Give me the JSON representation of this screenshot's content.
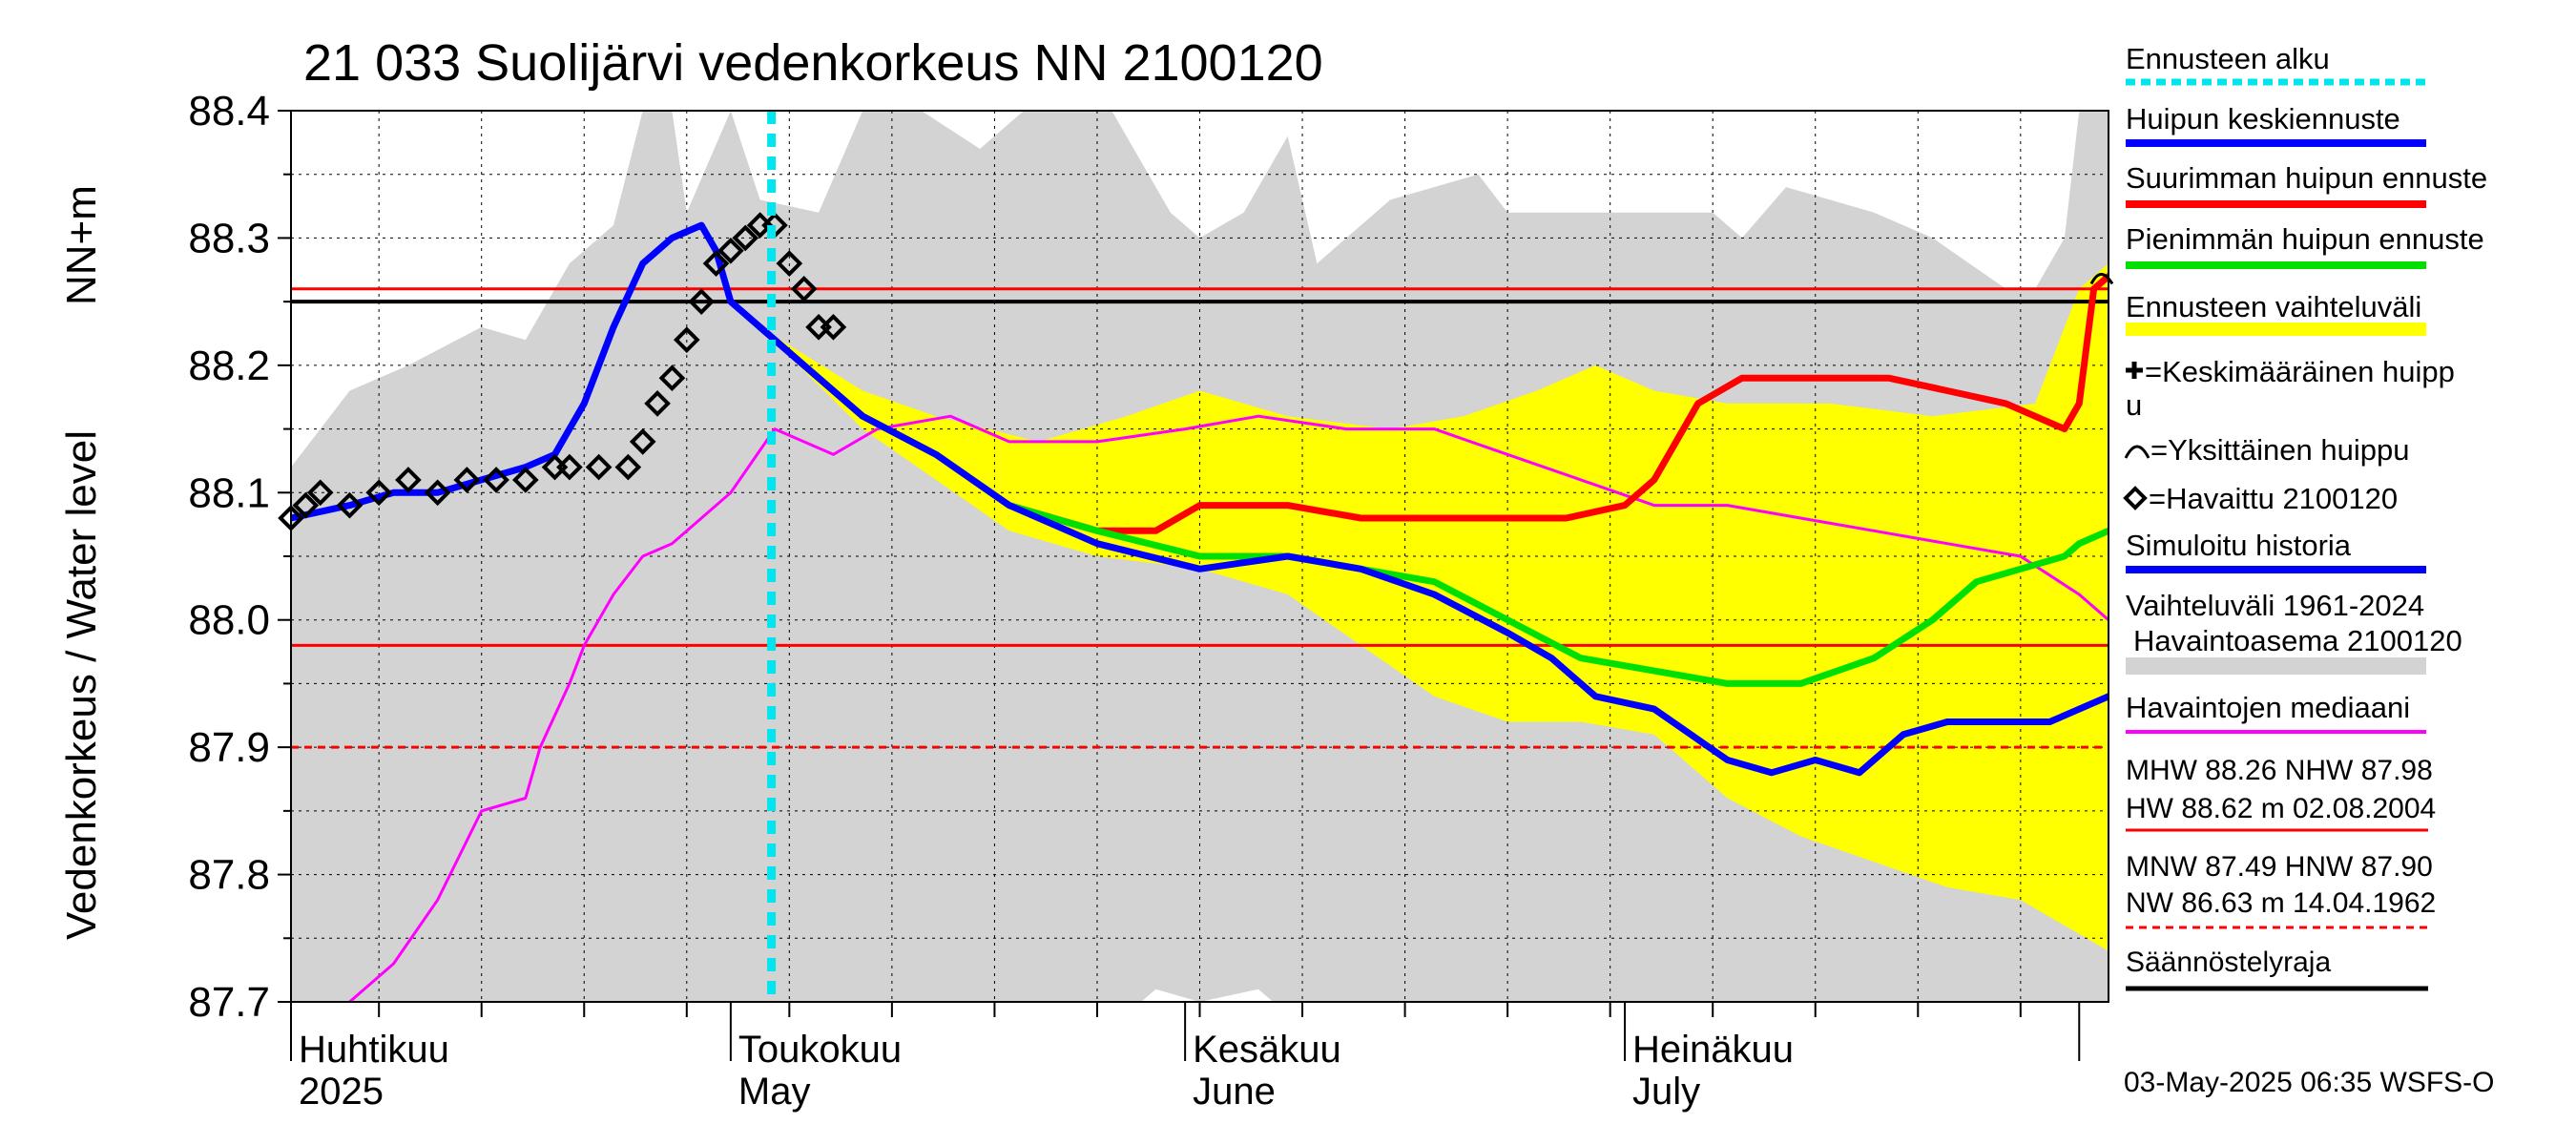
{
  "chart_data": {
    "type": "line",
    "title": "21 033 Suolijärvi vedenkorkeus NN 2100120",
    "ylabel_top": "NN+m",
    "ylabel": "Vedenkorkeus / Water level",
    "ylim": [
      87.7,
      88.4
    ],
    "yticks": [
      "88.4",
      "88.3",
      "88.2",
      "88.1",
      "88.0",
      "87.9",
      "87.8",
      "87.7"
    ],
    "x_range": [
      "2025-04-01",
      "2025-08-03"
    ],
    "month_labels": [
      {
        "fi": "Huhtikuu",
        "en": "2025",
        "date": "2025-04-01"
      },
      {
        "fi": "Toukokuu",
        "en": "May",
        "date": "2025-05-01"
      },
      {
        "fi": "Kesäkuu",
        "en": "June",
        "date": "2025-06-01"
      },
      {
        "fi": "Heinäkuu",
        "en": "July",
        "date": "2025-07-01"
      }
    ],
    "forecast_start": "2025-05-03",
    "reference_lines": [
      {
        "name": "MHW",
        "value": 88.26,
        "color": "#ff0000",
        "style": "solid"
      },
      {
        "name": "NHW",
        "value": 87.98,
        "color": "#ff0000",
        "style": "solid"
      },
      {
        "name": "MNW/HNW",
        "value": 87.9,
        "color": "#ff0000",
        "style": "dashed"
      },
      {
        "name": "Säännöstelyraja",
        "value": 88.25,
        "color": "#000000",
        "style": "solid"
      }
    ],
    "grey_band": {
      "upper": [
        [
          "2025-04-01",
          88.12
        ],
        [
          "2025-04-05",
          88.18
        ],
        [
          "2025-04-09",
          88.2
        ],
        [
          "2025-04-14",
          88.23
        ],
        [
          "2025-04-17",
          88.22
        ],
        [
          "2025-04-20",
          88.28
        ],
        [
          "2025-04-23",
          88.31
        ],
        [
          "2025-04-25",
          88.4
        ],
        [
          "2025-04-27",
          88.4
        ],
        [
          "2025-04-28",
          88.32
        ],
        [
          "2025-05-01",
          88.4
        ],
        [
          "2025-05-03",
          88.33
        ],
        [
          "2025-05-07",
          88.32
        ],
        [
          "2025-05-10",
          88.4
        ],
        [
          "2025-05-14",
          88.4
        ],
        [
          "2025-05-18",
          88.37
        ],
        [
          "2025-05-21",
          88.4
        ],
        [
          "2025-05-27",
          88.4
        ],
        [
          "2025-05-31",
          88.32
        ],
        [
          "2025-06-02",
          88.3
        ],
        [
          "2025-06-05",
          88.32
        ],
        [
          "2025-06-08",
          88.38
        ],
        [
          "2025-06-10",
          88.28
        ],
        [
          "2025-06-15",
          88.33
        ],
        [
          "2025-06-18",
          88.34
        ],
        [
          "2025-06-21",
          88.35
        ],
        [
          "2025-06-23",
          88.32
        ],
        [
          "2025-07-07",
          88.32
        ],
        [
          "2025-07-09",
          88.3
        ],
        [
          "2025-07-12",
          88.34
        ],
        [
          "2025-07-15",
          88.33
        ],
        [
          "2025-07-18",
          88.32
        ],
        [
          "2025-07-22",
          88.3
        ],
        [
          "2025-07-27",
          88.26
        ],
        [
          "2025-07-29",
          88.26
        ],
        [
          "2025-07-31",
          88.3
        ],
        [
          "2025-08-01",
          88.4
        ],
        [
          "2025-08-03",
          88.4
        ]
      ],
      "lower": [
        [
          "2025-04-01",
          87.7
        ],
        [
          "2025-05-26",
          87.7
        ],
        [
          "2025-05-28",
          87.69
        ],
        [
          "2025-05-30",
          87.71
        ],
        [
          "2025-06-02",
          87.7
        ],
        [
          "2025-06-06",
          87.71
        ],
        [
          "2025-06-08",
          87.69
        ],
        [
          "2025-08-03",
          87.69
        ]
      ]
    },
    "series": [
      {
        "name": "Ennusteen vaihteluväli",
        "type": "band",
        "color": "#ffff00",
        "upper": [
          [
            "2025-05-03",
            88.23
          ],
          [
            "2025-05-10",
            88.18
          ],
          [
            "2025-05-15",
            88.16
          ],
          [
            "2025-05-22",
            88.14
          ],
          [
            "2025-05-28",
            88.16
          ],
          [
            "2025-06-02",
            88.18
          ],
          [
            "2025-06-08",
            88.16
          ],
          [
            "2025-06-15",
            88.15
          ],
          [
            "2025-06-20",
            88.16
          ],
          [
            "2025-06-25",
            88.18
          ],
          [
            "2025-06-29",
            88.2
          ],
          [
            "2025-07-03",
            88.18
          ],
          [
            "2025-07-08",
            88.17
          ],
          [
            "2025-07-15",
            88.17
          ],
          [
            "2025-07-22",
            88.16
          ],
          [
            "2025-07-29",
            88.17
          ],
          [
            "2025-08-01",
            88.26
          ],
          [
            "2025-08-03",
            88.28
          ]
        ],
        "lower": [
          [
            "2025-05-03",
            88.23
          ],
          [
            "2025-05-10",
            88.15
          ],
          [
            "2025-05-15",
            88.11
          ],
          [
            "2025-05-20",
            88.07
          ],
          [
            "2025-05-26",
            88.05
          ],
          [
            "2025-06-02",
            88.04
          ],
          [
            "2025-06-08",
            88.02
          ],
          [
            "2025-06-13",
            87.98
          ],
          [
            "2025-06-18",
            87.94
          ],
          [
            "2025-06-23",
            87.92
          ],
          [
            "2025-06-28",
            87.92
          ],
          [
            "2025-07-03",
            87.91
          ],
          [
            "2025-07-08",
            87.86
          ],
          [
            "2025-07-13",
            87.83
          ],
          [
            "2025-07-18",
            87.81
          ],
          [
            "2025-07-23",
            87.79
          ],
          [
            "2025-07-28",
            87.78
          ],
          [
            "2025-08-03",
            87.74
          ]
        ]
      },
      {
        "name": "Simuloitu historia",
        "color": "#0000ff",
        "width": 7,
        "points": [
          [
            "2025-04-01",
            88.08
          ],
          [
            "2025-04-05",
            88.09
          ],
          [
            "2025-04-08",
            88.1
          ],
          [
            "2025-04-11",
            88.1
          ],
          [
            "2025-04-14",
            88.11
          ],
          [
            "2025-04-17",
            88.12
          ],
          [
            "2025-04-19",
            88.13
          ],
          [
            "2025-04-21",
            88.17
          ],
          [
            "2025-04-23",
            88.23
          ],
          [
            "2025-04-25",
            88.28
          ],
          [
            "2025-04-27",
            88.3
          ],
          [
            "2025-04-29",
            88.31
          ],
          [
            "2025-04-30",
            88.29
          ],
          [
            "2025-05-01",
            88.25
          ],
          [
            "2025-05-03",
            88.23
          ],
          [
            "2025-05-06",
            88.2
          ],
          [
            "2025-05-10",
            88.16
          ],
          [
            "2025-05-15",
            88.13
          ],
          [
            "2025-05-20",
            88.09
          ],
          [
            "2025-05-26",
            88.06
          ],
          [
            "2025-06-02",
            88.04
          ],
          [
            "2025-06-08",
            88.05
          ],
          [
            "2025-06-13",
            88.04
          ],
          [
            "2025-06-18",
            88.02
          ],
          [
            "2025-06-23",
            87.99
          ],
          [
            "2025-06-26",
            87.97
          ],
          [
            "2025-06-29",
            87.94
          ],
          [
            "2025-07-03",
            87.93
          ],
          [
            "2025-07-08",
            87.89
          ],
          [
            "2025-07-11",
            87.88
          ],
          [
            "2025-07-14",
            87.89
          ],
          [
            "2025-07-17",
            87.88
          ],
          [
            "2025-07-20",
            87.91
          ],
          [
            "2025-07-23",
            87.92
          ],
          [
            "2025-07-30",
            87.92
          ],
          [
            "2025-08-03",
            87.94
          ]
        ]
      },
      {
        "name": "Suurimman huipun ennuste",
        "color": "#ff0000",
        "width": 7,
        "points": [
          [
            "2025-05-03",
            88.23
          ],
          [
            "2025-05-10",
            88.16
          ],
          [
            "2025-05-15",
            88.13
          ],
          [
            "2025-05-20",
            88.09
          ],
          [
            "2025-05-26",
            88.07
          ],
          [
            "2025-05-30",
            88.07
          ],
          [
            "2025-06-02",
            88.09
          ],
          [
            "2025-06-08",
            88.09
          ],
          [
            "2025-06-13",
            88.08
          ],
          [
            "2025-06-16",
            88.08
          ],
          [
            "2025-06-19",
            88.08
          ],
          [
            "2025-06-23",
            88.08
          ],
          [
            "2025-06-27",
            88.08
          ],
          [
            "2025-07-01",
            88.09
          ],
          [
            "2025-07-03",
            88.11
          ],
          [
            "2025-07-06",
            88.17
          ],
          [
            "2025-07-09",
            88.19
          ],
          [
            "2025-07-13",
            88.19
          ],
          [
            "2025-07-16",
            88.19
          ],
          [
            "2025-07-19",
            88.19
          ],
          [
            "2025-07-23",
            88.18
          ],
          [
            "2025-07-27",
            88.17
          ],
          [
            "2025-07-31",
            88.15
          ],
          [
            "2025-08-01",
            88.17
          ],
          [
            "2025-08-02",
            88.26
          ],
          [
            "2025-08-03",
            88.27
          ]
        ]
      },
      {
        "name": "Pienimmän huipun ennuste",
        "color": "#00e000",
        "width": 7,
        "points": [
          [
            "2025-05-03",
            88.23
          ],
          [
            "2025-05-10",
            88.16
          ],
          [
            "2025-05-15",
            88.13
          ],
          [
            "2025-05-20",
            88.09
          ],
          [
            "2025-05-26",
            88.07
          ],
          [
            "2025-06-02",
            88.05
          ],
          [
            "2025-06-08",
            88.05
          ],
          [
            "2025-06-13",
            88.04
          ],
          [
            "2025-06-18",
            88.03
          ],
          [
            "2025-06-23",
            88.0
          ],
          [
            "2025-06-28",
            87.97
          ],
          [
            "2025-07-03",
            87.96
          ],
          [
            "2025-07-08",
            87.95
          ],
          [
            "2025-07-13",
            87.95
          ],
          [
            "2025-07-18",
            87.97
          ],
          [
            "2025-07-22",
            88.0
          ],
          [
            "2025-07-25",
            88.03
          ],
          [
            "2025-07-28",
            88.04
          ],
          [
            "2025-07-31",
            88.05
          ],
          [
            "2025-08-01",
            88.06
          ],
          [
            "2025-08-03",
            88.07
          ]
        ]
      },
      {
        "name": "Havaintojen mediaani",
        "color": "#ff00ff",
        "width": 3,
        "points": [
          [
            "2025-04-05",
            87.7
          ],
          [
            "2025-04-08",
            87.73
          ],
          [
            "2025-04-11",
            87.78
          ],
          [
            "2025-04-14",
            87.85
          ],
          [
            "2025-04-17",
            87.86
          ],
          [
            "2025-04-18",
            87.9
          ],
          [
            "2025-04-20",
            87.95
          ],
          [
            "2025-04-21",
            87.98
          ],
          [
            "2025-04-23",
            88.02
          ],
          [
            "2025-04-25",
            88.05
          ],
          [
            "2025-04-27",
            88.06
          ],
          [
            "2025-04-29",
            88.08
          ],
          [
            "2025-05-01",
            88.1
          ],
          [
            "2025-05-04",
            88.15
          ],
          [
            "2025-05-08",
            88.13
          ],
          [
            "2025-05-11",
            88.15
          ],
          [
            "2025-05-16",
            88.16
          ],
          [
            "2025-05-20",
            88.14
          ],
          [
            "2025-05-26",
            88.14
          ],
          [
            "2025-06-01",
            88.15
          ],
          [
            "2025-06-06",
            88.16
          ],
          [
            "2025-06-12",
            88.15
          ],
          [
            "2025-06-18",
            88.15
          ],
          [
            "2025-06-23",
            88.13
          ],
          [
            "2025-06-28",
            88.11
          ],
          [
            "2025-07-03",
            88.09
          ],
          [
            "2025-07-08",
            88.09
          ],
          [
            "2025-07-13",
            88.08
          ],
          [
            "2025-07-18",
            88.07
          ],
          [
            "2025-07-23",
            88.06
          ],
          [
            "2025-07-28",
            88.05
          ],
          [
            "2025-08-01",
            88.02
          ],
          [
            "2025-08-03",
            88.0
          ]
        ]
      },
      {
        "name": "Havaittu 2100120",
        "type": "markers",
        "marker": "diamond",
        "color": "#000000",
        "points": [
          [
            "2025-04-01",
            88.08
          ],
          [
            "2025-04-02",
            88.09
          ],
          [
            "2025-04-03",
            88.1
          ],
          [
            "2025-04-05",
            88.09
          ],
          [
            "2025-04-07",
            88.1
          ],
          [
            "2025-04-09",
            88.11
          ],
          [
            "2025-04-11",
            88.1
          ],
          [
            "2025-04-13",
            88.11
          ],
          [
            "2025-04-15",
            88.11
          ],
          [
            "2025-04-17",
            88.11
          ],
          [
            "2025-04-19",
            88.12
          ],
          [
            "2025-04-20",
            88.12
          ],
          [
            "2025-04-22",
            88.12
          ],
          [
            "2025-04-24",
            88.12
          ],
          [
            "2025-04-25",
            88.14
          ],
          [
            "2025-04-26",
            88.17
          ],
          [
            "2025-04-27",
            88.19
          ],
          [
            "2025-04-28",
            88.22
          ],
          [
            "2025-04-29",
            88.25
          ],
          [
            "2025-04-30",
            88.28
          ],
          [
            "2025-05-01",
            88.29
          ],
          [
            "2025-05-02",
            88.3
          ],
          [
            "2025-05-03",
            88.31
          ],
          [
            "2025-05-04",
            88.31
          ],
          [
            "2025-05-05",
            88.28
          ],
          [
            "2025-05-06",
            88.26
          ],
          [
            "2025-05-07",
            88.23
          ],
          [
            "2025-05-08",
            88.23
          ]
        ]
      }
    ],
    "legend": [
      {
        "label": "Ennusteen alku",
        "color": "#00e5ee",
        "style": "dotted"
      },
      {
        "label": "Huipun keskiennuste",
        "color": "#0000ff",
        "style": "solid"
      },
      {
        "label": "Suurimman huipun ennuste",
        "color": "#ff0000",
        "style": "solid"
      },
      {
        "label": "Pienimmän huipun ennuste",
        "color": "#00e000",
        "style": "solid"
      },
      {
        "label": "Ennusteen vaihteluväli",
        "color": "#ffff00",
        "style": "solid"
      },
      {
        "label": "=Keskimääräinen huippu",
        "color": "#000000",
        "style": "plus"
      },
      {
        "label": "=Yksittäinen huippu",
        "color": "#000000",
        "style": "arc"
      },
      {
        "label": "=Havaittu 2100120",
        "color": "#000000",
        "style": "diamond"
      },
      {
        "label": "Simuloitu historia",
        "color": "#0000ff",
        "style": "solid"
      },
      {
        "label": "Vaihteluväli 1961-2024 Havaintoasema 2100120",
        "color": "#d3d3d3",
        "style": "solid"
      },
      {
        "label": "Havaintojen mediaani",
        "color": "#ff00ff",
        "style": "solid"
      }
    ],
    "stats": {
      "line1": "MHW  88.26 NHW  87.98",
      "line2": "HW  88.62 m 02.08.2004",
      "line3": "MNW  87.49 HNW  87.90",
      "line4": "NW  86.63 m 14.04.1962",
      "line5": "Säännöstelyraja"
    },
    "footer": "03-May-2025 06:35 WSFS-O"
  }
}
